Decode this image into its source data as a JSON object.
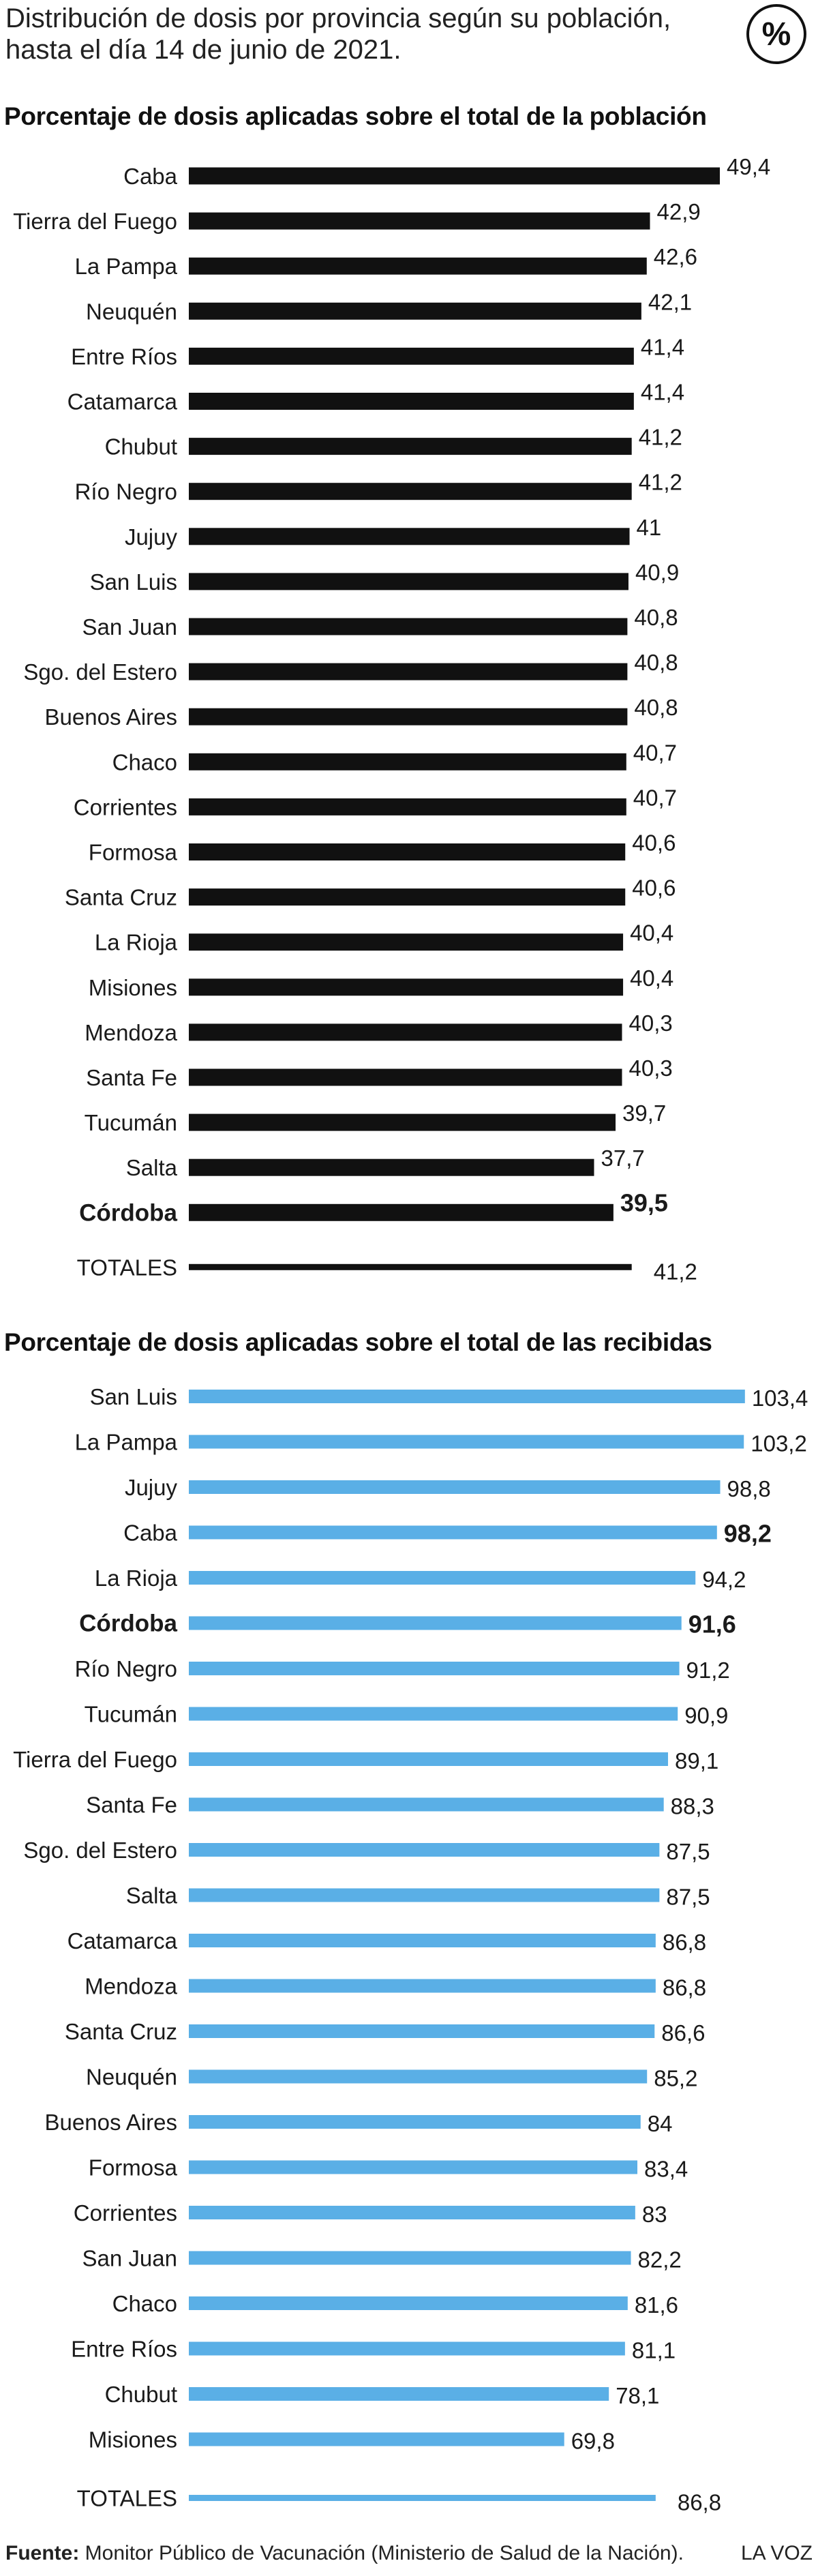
{
  "header": {
    "title_line1": "Distribución de dosis por provincia según su población,",
    "title_line2": "hasta el día 14 de junio de 2021.",
    "badge": "%"
  },
  "colors": {
    "black_bar": "#111111",
    "blue_bar": "#5aafe6",
    "text": "#1a1a1a"
  },
  "chart_data": [
    {
      "type": "bar",
      "orientation": "horizontal",
      "title": "Porcentaje de dosis aplicadas sobre el total de la población",
      "xlim": [
        0,
        52
      ],
      "bar_color": "#111111",
      "categories": [
        "Caba",
        "Tierra del Fuego",
        "La Pampa",
        "Neuquén",
        "Entre Ríos",
        "Catamarca",
        "Chubut",
        "Río Negro",
        "Jujuy",
        "San Luis",
        "San Juan",
        "Sgo. del Estero",
        "Buenos Aires",
        "Chaco",
        "Corrientes",
        "Formosa",
        "Santa Cruz",
        "La Rioja",
        "Misiones",
        "Mendoza",
        "Santa Fe",
        "Tucumán",
        "Salta",
        "Córdoba"
      ],
      "values": [
        49.4,
        42.9,
        42.6,
        42.1,
        41.4,
        41.4,
        41.2,
        41.2,
        41,
        40.9,
        40.8,
        40.8,
        40.8,
        40.7,
        40.7,
        40.6,
        40.6,
        40.4,
        40.4,
        40.3,
        40.3,
        39.7,
        37.7,
        39.5
      ],
      "value_labels": [
        "49,4",
        "42,9",
        "42,6",
        "42,1",
        "41,4",
        "41,4",
        "41,2",
        "41,2",
        "41",
        "40,9",
        "40,8",
        "40,8",
        "40,8",
        "40,7",
        "40,7",
        "40,6",
        "40,6",
        "40,4",
        "40,4",
        "40,3",
        "40,3",
        "39,7",
        "37,7",
        "39,5"
      ],
      "highlight": "Córdoba",
      "total": {
        "label": "TOTALES",
        "value": 41.2,
        "value_label": "41,2"
      }
    },
    {
      "type": "bar",
      "orientation": "horizontal",
      "title": "Porcentaje de dosis aplicadas sobre el total de las recibidas",
      "xlim": [
        0,
        109
      ],
      "bar_color": "#5aafe6",
      "categories": [
        "San Luis",
        "La Pampa",
        "Jujuy",
        "Caba",
        "La Rioja",
        "Córdoba",
        "Río Negro",
        "Tucumán",
        "Tierra del Fuego",
        "Santa Fe",
        "Sgo. del Estero",
        "Salta",
        "Catamarca",
        "Mendoza",
        "Santa Cruz",
        "Neuquén",
        "Buenos Aires",
        "Formosa",
        "Corrientes",
        "San Juan",
        "Chaco",
        "Entre Ríos",
        "Chubut",
        "Misiones"
      ],
      "values": [
        103.4,
        103.2,
        98.8,
        98.2,
        94.2,
        91.6,
        91.2,
        90.9,
        89.1,
        88.3,
        87.5,
        87.5,
        86.8,
        86.8,
        86.6,
        85.2,
        84,
        83.4,
        83,
        82.2,
        81.6,
        81.1,
        78.1,
        69.8
      ],
      "value_labels": [
        "103,4",
        "103,2",
        "98,8",
        "98,2",
        "94,2",
        "91,6",
        "91,2",
        "90,9",
        "89,1",
        "88,3",
        "87,5",
        "87,5",
        "86,8",
        "86,8",
        "86,6",
        "85,2",
        "84",
        "83,4",
        "83",
        "82,2",
        "81,6",
        "81,1",
        "78,1",
        "69,8"
      ],
      "highlight": "Córdoba",
      "bold_values": [
        "98,2",
        "91,6"
      ],
      "total": {
        "label": "TOTALES",
        "value": 86.8,
        "value_label": "86,8"
      }
    }
  ],
  "footer": {
    "source_label": "Fuente:",
    "source_text": " Monitor Público de Vacunación (Ministerio de Salud de la Nación).",
    "brand": "LA VOZ"
  }
}
